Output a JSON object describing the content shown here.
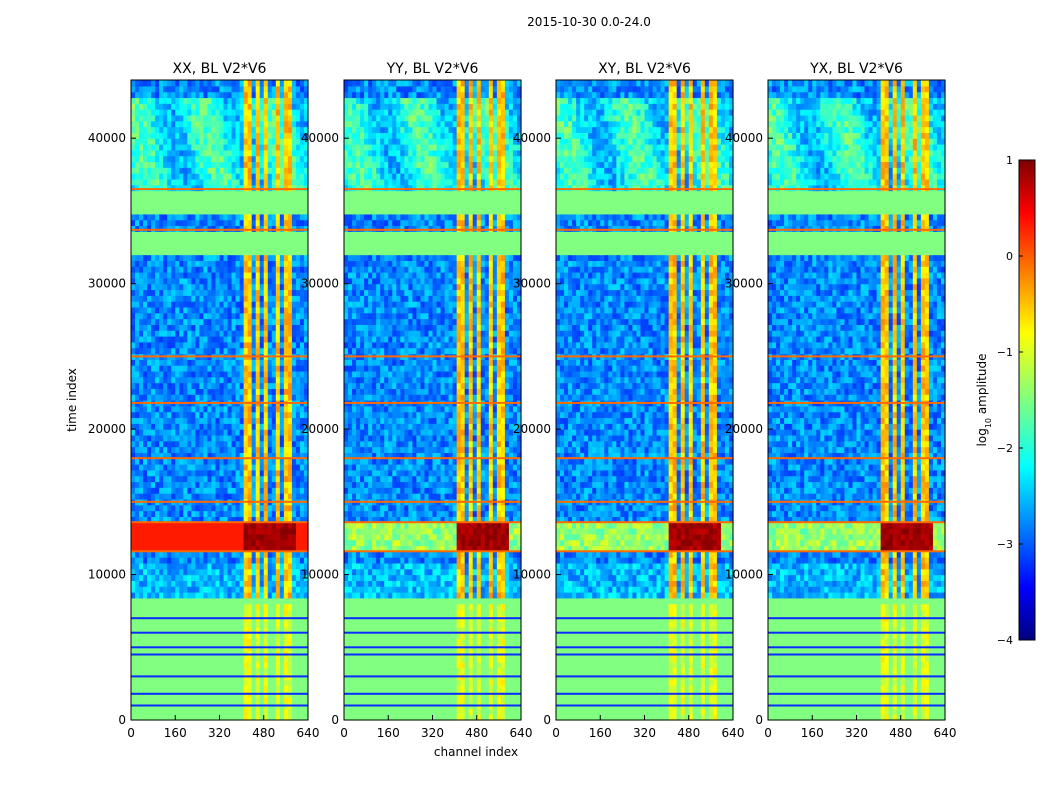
{
  "figure_title": "2015-10-30 0.0-24.0",
  "chart_data": {
    "type": "heatmap",
    "suptitle": "2015-10-30 0.0-24.0",
    "xlabel": "channel index",
    "ylabel": "time index",
    "xlim": [
      0,
      640
    ],
    "ylim": [
      0,
      44000
    ],
    "xticks": [
      0,
      160,
      320,
      480,
      640
    ],
    "yticks": [
      0,
      10000,
      20000,
      30000,
      40000
    ],
    "panels": [
      {
        "title": "XX, BL V2*V6",
        "id": "xx"
      },
      {
        "title": "YY, BL V2*V6",
        "id": "yy"
      },
      {
        "title": "XY, BL V2*V6",
        "id": "xy"
      },
      {
        "title": "YX, BL V2*V6",
        "id": "yx"
      }
    ],
    "colorbar": {
      "label": "log10 amplitude",
      "label_main": "log",
      "label_sub": "10",
      "label_rest": " amplitude",
      "range": [
        -4,
        1
      ],
      "ticks": [
        1,
        0,
        -1,
        -2,
        -3,
        -4
      ],
      "tick_labels": [
        "1",
        "0",
        "−1",
        "−2",
        "−3",
        "−4"
      ],
      "colormap": "jet"
    },
    "features": {
      "flagged_bands_time": [
        [
          0,
          8200
        ],
        [
          32000,
          33500
        ],
        [
          35000,
          36200
        ]
      ],
      "bright_band_time": [
        11500,
        13500
      ],
      "rfi_channel_ranges": [
        [
          410,
          440
        ],
        [
          455,
          465
        ],
        [
          485,
          500
        ],
        [
          520,
          535
        ],
        [
          560,
          580
        ]
      ]
    }
  }
}
